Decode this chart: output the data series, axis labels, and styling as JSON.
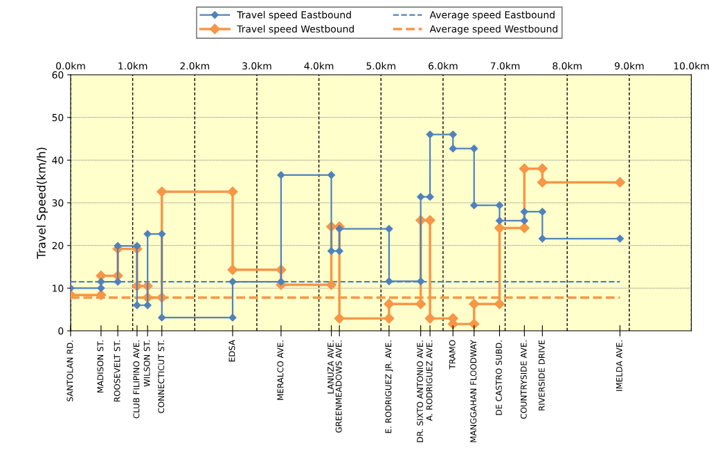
{
  "chart_data": {
    "type": "line",
    "ylabel": "Travel Speed(km/h)",
    "series": [
      {
        "name": "Travel speed Eastbound",
        "color": "#4f81bd",
        "x": [
          0,
          0.49,
          0.49,
          0.76,
          0.76,
          1.07,
          1.07,
          1.24,
          1.24,
          1.47,
          1.47,
          2.61,
          2.61,
          3.39,
          3.39,
          4.2,
          4.2,
          4.33,
          4.33,
          5.13,
          5.13,
          5.64,
          5.64,
          5.79,
          5.79,
          6.16,
          6.16,
          6.5,
          6.5,
          6.91,
          6.91,
          7.31,
          7.31,
          7.6,
          7.6,
          8.85
        ],
        "values": [
          10.0,
          10.0,
          11.5,
          11.5,
          19.9,
          19.9,
          6.0,
          6.0,
          22.7,
          22.7,
          3.1,
          3.1,
          11.5,
          11.5,
          36.5,
          36.5,
          18.7,
          18.7,
          23.9,
          23.9,
          11.6,
          11.6,
          31.4,
          31.4,
          46.0,
          46.0,
          42.7,
          42.7,
          29.4,
          29.4,
          25.8,
          25.8,
          27.9,
          27.9,
          21.6,
          21.6
        ]
      },
      {
        "name": "Travel speed Westbound",
        "color": "#f79646",
        "x": [
          0,
          0.49,
          0.49,
          0.76,
          0.76,
          1.07,
          1.07,
          1.24,
          1.24,
          1.47,
          1.47,
          2.61,
          2.61,
          3.39,
          3.39,
          4.2,
          4.2,
          4.33,
          4.33,
          5.13,
          5.13,
          5.64,
          5.64,
          5.79,
          5.79,
          6.16,
          6.16,
          6.5,
          6.5,
          6.91,
          6.91,
          7.31,
          7.31,
          7.6,
          7.6,
          8.85
        ],
        "values": [
          8.4,
          8.4,
          12.9,
          12.9,
          19.2,
          19.2,
          10.5,
          10.5,
          7.8,
          7.8,
          32.6,
          32.6,
          14.3,
          14.3,
          10.8,
          10.8,
          24.4,
          24.4,
          2.9,
          2.9,
          6.3,
          6.3,
          25.9,
          25.9,
          2.9,
          2.9,
          1.6,
          1.6,
          6.3,
          6.3,
          24.1,
          24.1,
          38.0,
          38.0,
          34.8,
          34.8
        ]
      },
      {
        "name": "Average speed Eastbound",
        "color": "#4f81bd",
        "line_style": "dashed",
        "marker": "none",
        "x": [
          0,
          8.85
        ],
        "values": [
          11.5,
          11.5
        ]
      },
      {
        "name": "Average speed Westbound",
        "color": "#f79646",
        "line_style": "dashed",
        "marker": "none",
        "x": [
          0,
          8.85
        ],
        "values": [
          7.8,
          7.8
        ]
      }
    ],
    "marker": "diamond",
    "annotations": [
      "SANTOLAN RD.",
      "MADISON ST.",
      "ROOSEVELT ST.",
      "CLUB FILIPINO AVE.",
      "WILSON ST.",
      "CONNECTICUT ST.",
      "EDSA",
      "MERALCO AVE.",
      "LANUZA AVE.",
      "GREENMEADOWS AVE.",
      "E. RODRIGUEZ JR. AVE.",
      "DR. SIXTO ANTONIO AVE.",
      "A. RODRIGUEZ AVE.",
      "TRAMO",
      "MANGGAHAN FLOODWAY",
      "DE CASTRO SUBD.",
      "COUNTRYSIDE AVE.",
      "RIVERSIDE DRIVE",
      "IMELDA AVE."
    ],
    "xlim": [
      0,
      10
    ],
    "xticks": [
      {
        "value": 0,
        "label": "0.0km"
      },
      {
        "value": 1,
        "label": "1.0km"
      },
      {
        "value": 2,
        "label": "2.0km"
      },
      {
        "value": 3,
        "label": "3.0km"
      },
      {
        "value": 4,
        "label": "4.0km"
      },
      {
        "value": 5,
        "label": "5.0km"
      },
      {
        "value": 6,
        "label": "6.0km"
      },
      {
        "value": 7,
        "label": "7.0km"
      },
      {
        "value": 8,
        "label": "8.0km"
      },
      {
        "value": 9,
        "label": "9.0km"
      },
      {
        "value": 10,
        "label": "10.0km"
      }
    ],
    "ylim": [
      0,
      60
    ],
    "yticks": [
      0,
      10,
      20,
      30,
      40,
      50,
      60
    ],
    "grid": true,
    "legend": "top"
  }
}
